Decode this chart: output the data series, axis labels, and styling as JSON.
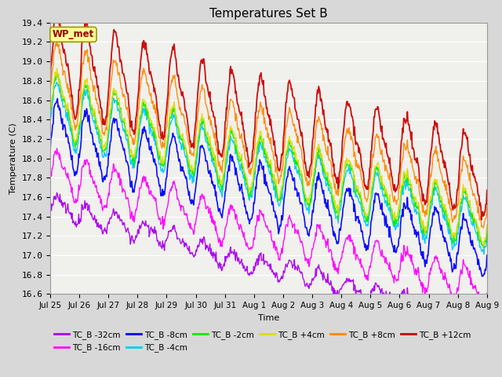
{
  "title": "Temperatures Set B",
  "xlabel": "Time",
  "ylabel": "Temperature (C)",
  "ylim": [
    16.6,
    19.4
  ],
  "yticks": [
    16.6,
    16.8,
    17.0,
    17.2,
    17.4,
    17.6,
    17.8,
    18.0,
    18.2,
    18.4,
    18.6,
    18.8,
    19.0,
    19.2,
    19.4
  ],
  "bg_color": "#d8d8d8",
  "plot_bg": "#f0f0ec",
  "legend_items": [
    {
      "label": "TC_B -32cm",
      "color": "#aa00ee"
    },
    {
      "label": "TC_B -16cm",
      "color": "#ff00ff"
    },
    {
      "label": "TC_B -8cm",
      "color": "#0000ff"
    },
    {
      "label": "TC_B -4cm",
      "color": "#00ccff"
    },
    {
      "label": "TC_B -2cm",
      "color": "#00ee00"
    },
    {
      "label": "TC_B +4cm",
      "color": "#dddd00"
    },
    {
      "label": "TC_B +8cm",
      "color": "#ff8800"
    },
    {
      "label": "TC_B +12cm",
      "color": "#cc0000"
    }
  ],
  "wp_met_label": "WP_met",
  "wp_met_color": "#990000",
  "wp_met_bg": "#ffff99",
  "wp_met_edge": "#999900",
  "n_points": 720,
  "x_start": 0,
  "x_end": 15,
  "xtick_labels": [
    "Jul 25",
    "Jul 26",
    "Jul 27",
    "Jul 28",
    "Jul 29",
    "Jul 30",
    "Jul 31",
    "Aug 1",
    "Aug 2",
    "Aug 3",
    "Aug 4",
    "Aug 5",
    "Aug 6",
    "Aug 7",
    "Aug 8",
    "Aug 9"
  ],
  "xtick_positions": [
    0,
    1,
    2,
    3,
    4,
    5,
    6,
    7,
    8,
    9,
    10,
    11,
    12,
    13,
    14,
    15
  ]
}
